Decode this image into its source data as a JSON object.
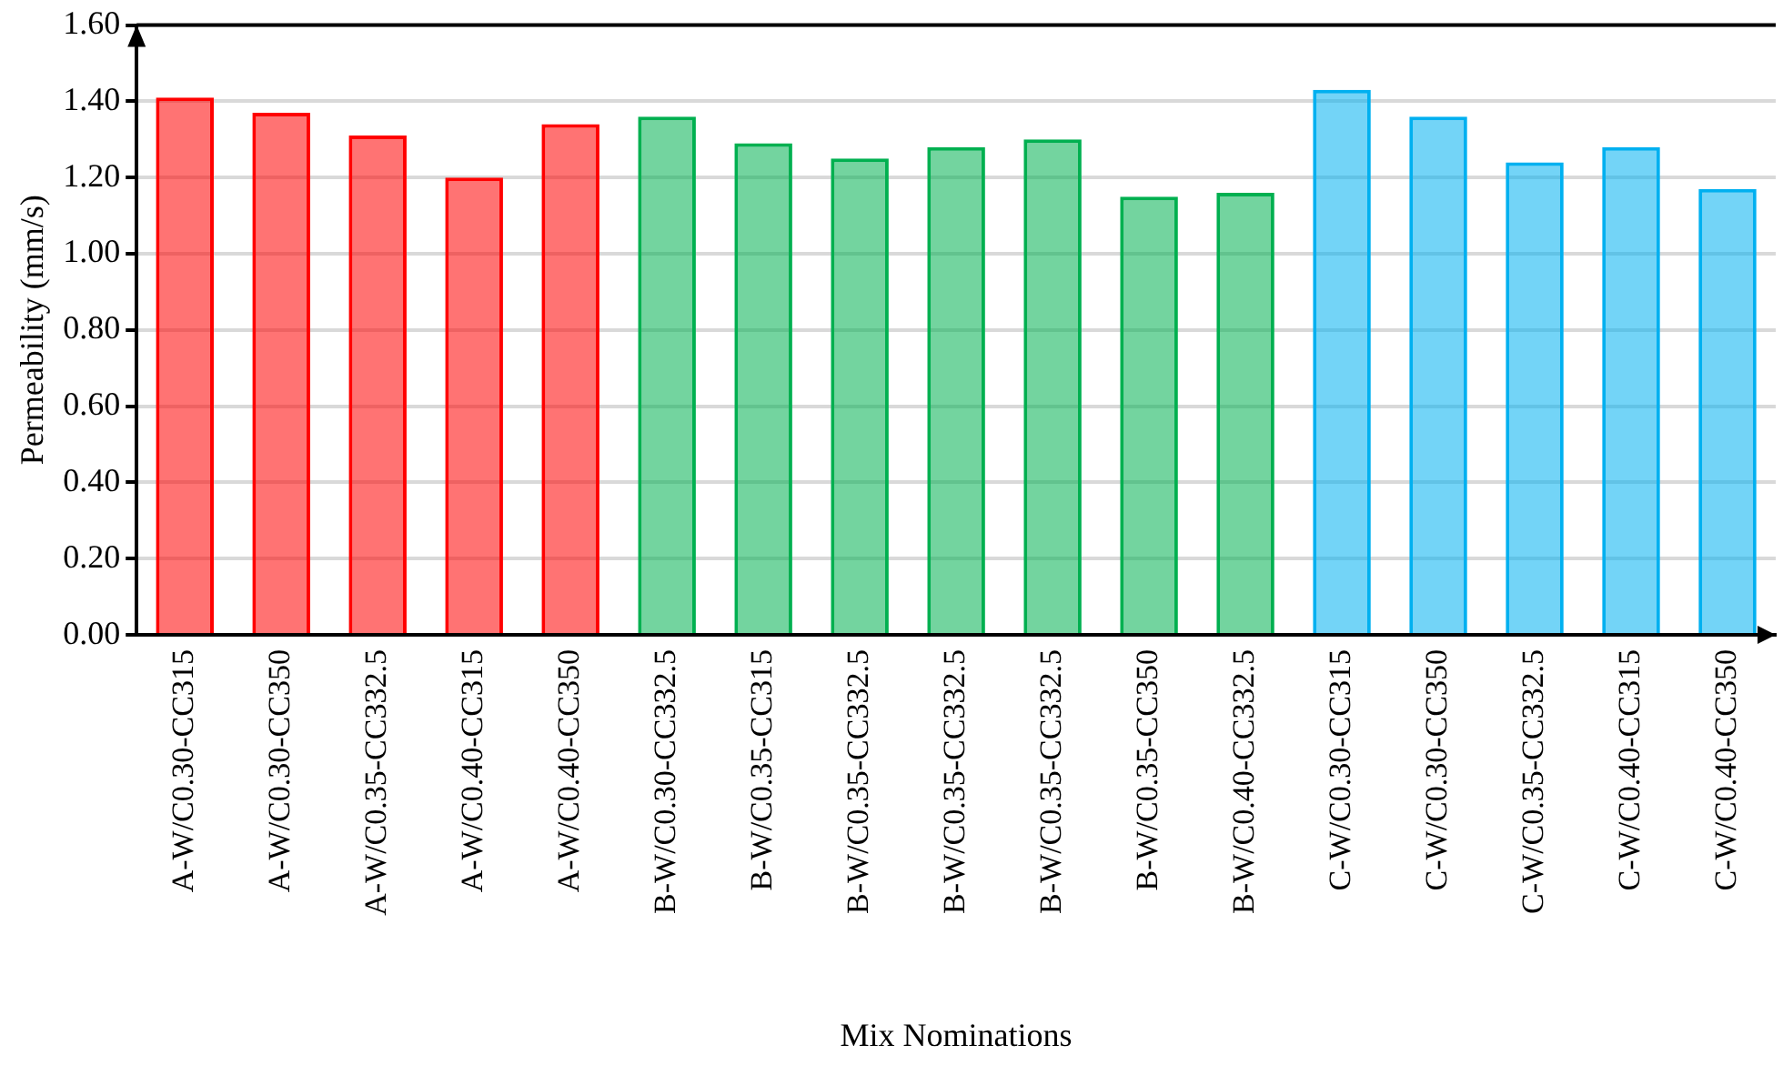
{
  "chart_data": {
    "type": "bar",
    "xlabel": "Mix Nominations",
    "ylabel": "Permeability (mm/s)",
    "categories": [
      "A-W/C0.30-CC315",
      "A-W/C0.30-CC350",
      "A-W/C0.35-CC332.5",
      "A-W/C0.40-CC315",
      "A-W/C0.40-CC350",
      "B-W/C0.30-CC332.5",
      "B-W/C0.35-CC315",
      "B-W/C0.35-CC332.5",
      "B-W/C0.35-CC332.5",
      "B-W/C0.35-CC332.5",
      "B-W/C0.35-CC350",
      "B-W/C0.40-CC332.5",
      "C-W/C0.30-CC315",
      "C-W/C0.30-CC350",
      "C-W/C0.35-CC332.5",
      "C-W/C0.40-CC315",
      "C-W/C0.40-CC350"
    ],
    "values": [
      1.41,
      1.37,
      1.31,
      1.2,
      1.34,
      1.36,
      1.29,
      1.25,
      1.28,
      1.3,
      1.15,
      1.16,
      1.43,
      1.36,
      1.24,
      1.28,
      1.17
    ],
    "colors": [
      "#ff0000",
      "#ff0000",
      "#ff0000",
      "#ff0000",
      "#ff0000",
      "#00b050",
      "#00b050",
      "#00b050",
      "#00b050",
      "#00b050",
      "#00b050",
      "#00b050",
      "#00b0f0",
      "#00b0f0",
      "#00b0f0",
      "#00b0f0",
      "#00b0f0"
    ],
    "ylim": [
      0,
      1.6
    ],
    "yticks": [
      {
        "value": 0,
        "label": "0.00"
      },
      {
        "value": 0.2,
        "label": "0.20"
      },
      {
        "value": 0.4,
        "label": "0.40"
      },
      {
        "value": 0.6,
        "label": "0.60"
      },
      {
        "value": 0.8,
        "label": "0.80"
      },
      {
        "value": 1.0,
        "label": "1.00"
      },
      {
        "value": 1.2,
        "label": "1.20"
      },
      {
        "value": 1.4,
        "label": "1.40"
      },
      {
        "value": 1.6,
        "label": "1.60"
      }
    ],
    "grid": "y",
    "legend": false
  }
}
